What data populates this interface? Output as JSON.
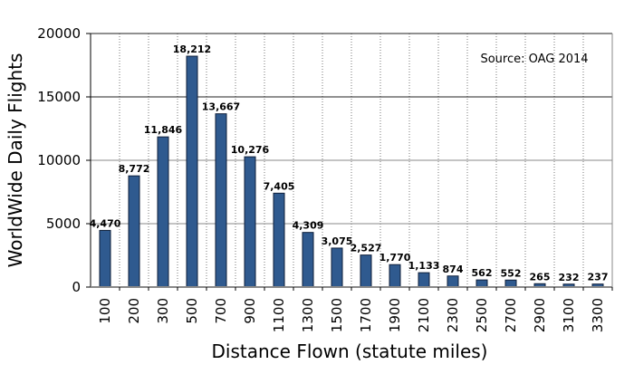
{
  "chart_data": {
    "type": "bar",
    "title": "",
    "xlabel": "Distance Flown (statute miles)",
    "ylabel": "WorldWide Daily Flights",
    "annotation": "Source: OAG 2014",
    "categories": [
      "100",
      "200",
      "300",
      "500",
      "700",
      "900",
      "1100",
      "1300",
      "1500",
      "1700",
      "1900",
      "2100",
      "2300",
      "2500",
      "2700",
      "2900",
      "3100",
      "3300"
    ],
    "values": [
      4470,
      8772,
      11846,
      18212,
      13667,
      10276,
      7405,
      4309,
      3075,
      2527,
      1770,
      1133,
      874,
      562,
      552,
      265,
      232,
      237
    ],
    "value_labels": [
      "4,470",
      "8,772",
      "11,846",
      "18,212",
      "13,667",
      "10,276",
      "7,405",
      "4,309",
      "3,075",
      "2,527",
      "1,770",
      "1,133",
      "874",
      "562",
      "552",
      "265",
      "232",
      "237"
    ],
    "ylim": [
      0,
      20000
    ],
    "yticks": [
      0,
      5000,
      10000,
      15000,
      20000
    ],
    "grid": {
      "horizontal": true,
      "vertical_dotted": true
    },
    "legend": null,
    "bar_color": "#2f5a8f"
  }
}
